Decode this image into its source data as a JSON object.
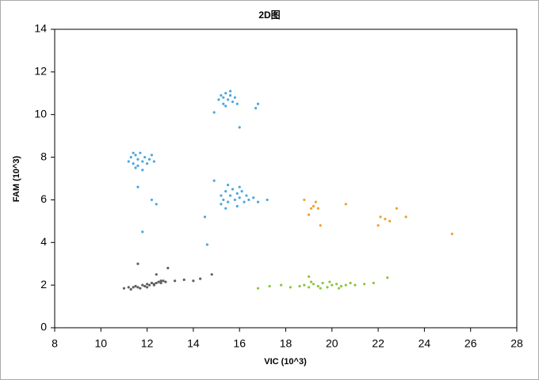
{
  "chart_data": {
    "type": "scatter",
    "title": "2D图",
    "x_label": "VIC (10^3)",
    "y_label": "FAM (10^3)",
    "xlim": [
      8,
      28
    ],
    "xticks": [
      8,
      10,
      12,
      14,
      16,
      18,
      20,
      22,
      24,
      26,
      28
    ],
    "ylim": [
      0,
      14
    ],
    "yticks": [
      0,
      2,
      4,
      6,
      8,
      10,
      12,
      14
    ],
    "grid": false,
    "series": [
      {
        "color": "#606060",
        "x": [
          11.0,
          11.2,
          11.4,
          11.5,
          11.6,
          11.8,
          11.9,
          12.0,
          12.1,
          12.2,
          12.3,
          12.4,
          12.5,
          12.6,
          12.7,
          12.8,
          11.3,
          11.7,
          12.0,
          12.3,
          12.6,
          13.2,
          13.6,
          14.0,
          14.3,
          14.8,
          11.6,
          12.4,
          12.9
        ],
        "y": [
          1.85,
          1.9,
          1.9,
          1.95,
          1.9,
          2.0,
          1.95,
          2.05,
          2.0,
          2.1,
          2.05,
          2.1,
          2.15,
          2.1,
          2.2,
          2.15,
          1.8,
          1.85,
          1.9,
          2.0,
          2.2,
          2.2,
          2.25,
          2.2,
          2.3,
          2.5,
          3.0,
          2.5,
          2.8
        ]
      },
      {
        "color": "#4aa8e0",
        "x": [
          11.2,
          11.3,
          11.4,
          11.5,
          11.6,
          11.6,
          11.7,
          11.8,
          11.9,
          12.0,
          12.1,
          12.2,
          11.5,
          11.8,
          12.3,
          11.4,
          15.1,
          15.2,
          15.3,
          15.4,
          15.5,
          15.6,
          15.7,
          15.8,
          15.4,
          15.6,
          15.3,
          15.9,
          15.2,
          15.3,
          15.4,
          15.5,
          15.6,
          15.7,
          15.8,
          15.9,
          16.0,
          16.1,
          16.2,
          16.3,
          16.4,
          16.6,
          16.8,
          15.5,
          15.9,
          15.4,
          16.0,
          15.2,
          11.8,
          12.2,
          12.4,
          14.5,
          14.6,
          14.9,
          14.9,
          16.0,
          16.8,
          16.7,
          17.2,
          11.6
        ],
        "y": [
          7.8,
          8.0,
          7.7,
          8.1,
          7.9,
          7.6,
          8.2,
          7.8,
          8.0,
          7.7,
          7.9,
          8.1,
          7.5,
          7.4,
          7.8,
          8.2,
          10.7,
          10.9,
          10.5,
          11.0,
          10.7,
          10.9,
          10.6,
          10.8,
          10.4,
          11.1,
          10.8,
          10.5,
          6.2,
          6.0,
          6.4,
          5.9,
          6.2,
          6.5,
          6.0,
          6.3,
          6.1,
          6.4,
          5.9,
          6.2,
          6.0,
          6.1,
          5.9,
          6.7,
          5.7,
          5.6,
          6.6,
          5.8,
          4.5,
          6.0,
          5.8,
          5.2,
          3.9,
          6.9,
          10.1,
          9.4,
          10.5,
          10.3,
          6.0,
          6.6
        ]
      },
      {
        "color": "#8cc63f",
        "x": [
          18.6,
          18.8,
          19.0,
          19.2,
          19.4,
          19.6,
          19.8,
          20.0,
          20.2,
          20.4,
          20.6,
          20.8,
          19.1,
          19.5,
          19.9,
          20.3,
          21.0,
          21.4,
          21.8,
          22.4,
          16.8,
          17.3,
          17.8,
          18.2,
          19.0
        ],
        "y": [
          1.95,
          2.0,
          1.9,
          2.05,
          1.95,
          2.1,
          1.9,
          2.0,
          2.05,
          1.95,
          2.0,
          2.1,
          2.15,
          1.85,
          2.15,
          1.85,
          2.0,
          2.05,
          2.1,
          2.35,
          1.85,
          1.95,
          2.0,
          1.9,
          2.4
        ]
      },
      {
        "color": "#f0a030",
        "x": [
          18.8,
          19.1,
          19.2,
          19.3,
          19.4,
          19.0,
          19.5,
          20.6,
          22.0,
          22.1,
          22.3,
          22.5,
          22.8,
          23.2,
          25.2
        ],
        "y": [
          6.0,
          5.6,
          5.7,
          5.9,
          5.6,
          5.3,
          4.8,
          5.8,
          4.8,
          5.2,
          5.1,
          5.0,
          5.6,
          5.2,
          4.4
        ]
      }
    ]
  }
}
